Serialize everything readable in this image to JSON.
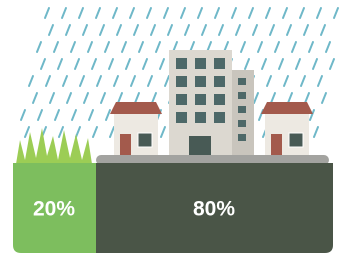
{
  "segments": [
    {
      "label": "20%"
    },
    {
      "label": "80%"
    }
  ]
}
